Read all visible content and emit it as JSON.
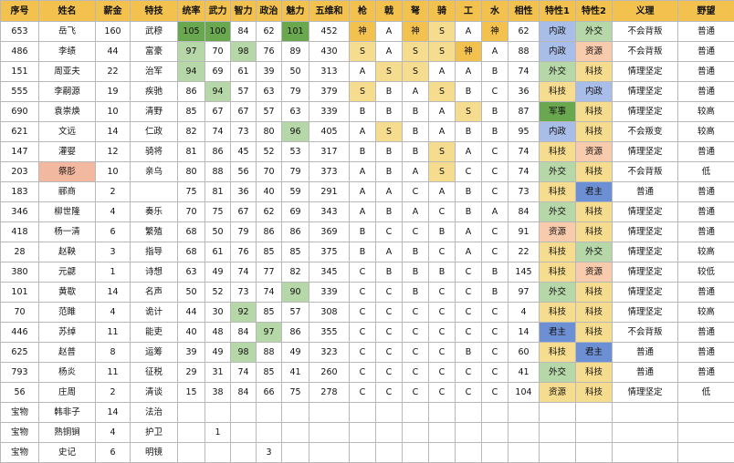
{
  "headers": [
    "序号",
    "姓名",
    "薪金",
    "特技",
    "统率",
    "武力",
    "智力",
    "政治",
    "魅力",
    "五维和",
    "枪",
    "戟",
    "弩",
    "骑",
    "工",
    "水",
    "相性",
    "特性1",
    "特性2",
    "义理",
    "野望"
  ],
  "rows": [
    [
      "653",
      "岳飞",
      "160",
      "武穆",
      "105",
      "100",
      "84",
      "62",
      "101",
      "452",
      "神",
      "A",
      "神",
      "S",
      "A",
      "神",
      "62",
      "内政",
      "外交",
      "不会背叛",
      "普通"
    ],
    [
      "486",
      "李绩",
      "44",
      "富豪",
      "97",
      "70",
      "98",
      "76",
      "89",
      "430",
      "S",
      "A",
      "S",
      "S",
      "神",
      "A",
      "88",
      "内政",
      "资源",
      "不会背叛",
      "普通"
    ],
    [
      "151",
      "周亚夫",
      "22",
      "治军",
      "94",
      "69",
      "61",
      "39",
      "50",
      "313",
      "A",
      "S",
      "S",
      "A",
      "A",
      "B",
      "74",
      "外交",
      "科技",
      "情理坚定",
      "普通"
    ],
    [
      "555",
      "李嗣源",
      "19",
      "疾驰",
      "86",
      "94",
      "57",
      "63",
      "79",
      "379",
      "S",
      "B",
      "A",
      "S",
      "B",
      "C",
      "36",
      "科技",
      "内政",
      "情理坚定",
      "普通"
    ],
    [
      "690",
      "袁崇焕",
      "10",
      "清野",
      "85",
      "67",
      "67",
      "57",
      "63",
      "339",
      "B",
      "B",
      "B",
      "A",
      "S",
      "B",
      "87",
      "军事",
      "科技",
      "情理坚定",
      "较高"
    ],
    [
      "621",
      "文远",
      "14",
      "仁政",
      "82",
      "74",
      "73",
      "80",
      "96",
      "405",
      "A",
      "S",
      "B",
      "A",
      "B",
      "B",
      "95",
      "内政",
      "科技",
      "不会叛变",
      "较高"
    ],
    [
      "147",
      "灌婴",
      "12",
      "骑将",
      "81",
      "86",
      "45",
      "52",
      "53",
      "317",
      "B",
      "B",
      "B",
      "S",
      "A",
      "C",
      "74",
      "科技",
      "资源",
      "情理坚定",
      "普通"
    ],
    [
      "203",
      "祭肜",
      "10",
      "亲乌",
      "80",
      "88",
      "56",
      "70",
      "79",
      "373",
      "A",
      "B",
      "A",
      "S",
      "C",
      "C",
      "74",
      "外交",
      "科技",
      "不会背叛",
      "低"
    ],
    [
      "183",
      "郦商",
      "2",
      "",
      "75",
      "81",
      "36",
      "40",
      "59",
      "291",
      "A",
      "A",
      "C",
      "A",
      "B",
      "C",
      "73",
      "科技",
      "君主",
      "普通",
      "普通"
    ],
    [
      "346",
      "柳世隆",
      "4",
      "奏乐",
      "70",
      "75",
      "67",
      "62",
      "69",
      "343",
      "A",
      "B",
      "A",
      "C",
      "B",
      "A",
      "84",
      "外交",
      "科技",
      "情理坚定",
      "普通"
    ],
    [
      "418",
      "杨一清",
      "6",
      "繁殖",
      "68",
      "50",
      "79",
      "86",
      "86",
      "369",
      "B",
      "C",
      "C",
      "B",
      "A",
      "C",
      "91",
      "资源",
      "科技",
      "情理坚定",
      "普通"
    ],
    [
      "28",
      "赵鞅",
      "3",
      "指导",
      "68",
      "61",
      "76",
      "85",
      "85",
      "375",
      "B",
      "A",
      "B",
      "C",
      "A",
      "C",
      "22",
      "科技",
      "外交",
      "情理坚定",
      "较高"
    ],
    [
      "380",
      "元勰",
      "1",
      "诗想",
      "63",
      "49",
      "74",
      "77",
      "82",
      "345",
      "C",
      "B",
      "B",
      "B",
      "C",
      "B",
      "145",
      "科技",
      "资源",
      "情理坚定",
      "较低"
    ],
    [
      "101",
      "黄歇",
      "14",
      "名声",
      "50",
      "52",
      "73",
      "74",
      "90",
      "339",
      "C",
      "C",
      "B",
      "C",
      "C",
      "B",
      "97",
      "外交",
      "科技",
      "情理坚定",
      "普通"
    ],
    [
      "70",
      "范雎",
      "4",
      "诡计",
      "44",
      "30",
      "92",
      "85",
      "57",
      "308",
      "C",
      "C",
      "C",
      "C",
      "C",
      "C",
      "4",
      "科技",
      "科技",
      "情理坚定",
      "较高"
    ],
    [
      "446",
      "苏绰",
      "11",
      "能吏",
      "40",
      "48",
      "84",
      "97",
      "86",
      "355",
      "C",
      "C",
      "C",
      "C",
      "C",
      "C",
      "14",
      "君主",
      "科技",
      "不会背叛",
      "普通"
    ],
    [
      "625",
      "赵普",
      "8",
      "运筹",
      "39",
      "49",
      "98",
      "88",
      "49",
      "323",
      "C",
      "C",
      "C",
      "C",
      "B",
      "C",
      "60",
      "科技",
      "君主",
      "普通",
      "普通"
    ],
    [
      "793",
      "杨炎",
      "11",
      "征税",
      "29",
      "31",
      "74",
      "85",
      "41",
      "260",
      "C",
      "C",
      "C",
      "C",
      "C",
      "C",
      "41",
      "外交",
      "科技",
      "普通",
      "普通"
    ],
    [
      "56",
      "庄周",
      "2",
      "清谈",
      "15",
      "38",
      "84",
      "66",
      "75",
      "278",
      "C",
      "C",
      "C",
      "C",
      "C",
      "C",
      "104",
      "资源",
      "科技",
      "情理坚定",
      "低"
    ],
    [
      "宝物",
      "韩非子",
      "14",
      "法治",
      "",
      "",
      "",
      "",
      "",
      "",
      "",
      "",
      "",
      "",
      "",
      "",
      "",
      "",
      "",
      "",
      ""
    ],
    [
      "宝物",
      "熟铜锏",
      "4",
      "护卫",
      "",
      "1",
      "",
      "",
      "",
      "",
      "",
      "",
      "",
      "",
      "",
      "",
      "",
      "",
      "",
      "",
      ""
    ],
    [
      "宝物",
      "史记",
      "6",
      "明镜",
      "",
      "",
      "",
      "3",
      "",
      "",
      "",
      "",
      "",
      "",
      "",
      "",
      "",
      "",
      "",
      "",
      ""
    ]
  ],
  "highlights": {
    "0": {
      "4": "dg",
      "5": "dg",
      "8": "dg",
      "10": "y",
      "12": "y",
      "13": "ly",
      "15": "y",
      "17": "lb",
      "18": "gt"
    },
    "1": {
      "4": "lg",
      "6": "lg",
      "10": "ly",
      "12": "ly",
      "13": "ly",
      "14": "y",
      "17": "lb",
      "18": "lo"
    },
    "2": {
      "4": "lg",
      "11": "ly",
      "12": "ly",
      "17": "gt",
      "18": "ly"
    },
    "3": {
      "5": "lg",
      "10": "ly",
      "13": "ly",
      "17": "ly",
      "18": "lb"
    },
    "4": {
      "14": "ly",
      "17": "dg",
      "18": "ly"
    },
    "5": {
      "8": "lg",
      "11": "ly",
      "17": "lb",
      "18": "ly"
    },
    "6": {
      "13": "ly",
      "17": "ly",
      "18": "lo"
    },
    "7": {
      "1": "o",
      "13": "ly",
      "17": "gt",
      "18": "ly"
    },
    "8": {
      "17": "ly",
      "18": "b"
    },
    "9": {
      "17": "gt",
      "18": "ly"
    },
    "10": {
      "17": "lo",
      "18": "ly"
    },
    "11": {
      "17": "ly",
      "18": "gt"
    },
    "12": {
      "17": "ly",
      "18": "lo"
    },
    "13": {
      "8": "lg",
      "17": "gt",
      "18": "ly"
    },
    "14": {
      "6": "lg",
      "17": "ly",
      "18": "ly"
    },
    "15": {
      "7": "lg",
      "17": "b",
      "18": "ly"
    },
    "16": {
      "6": "lg",
      "17": "ly",
      "18": "b"
    },
    "17": {
      "17": "gt",
      "18": "ly"
    },
    "18": {
      "17": "ly",
      "18": "ly"
    }
  }
}
